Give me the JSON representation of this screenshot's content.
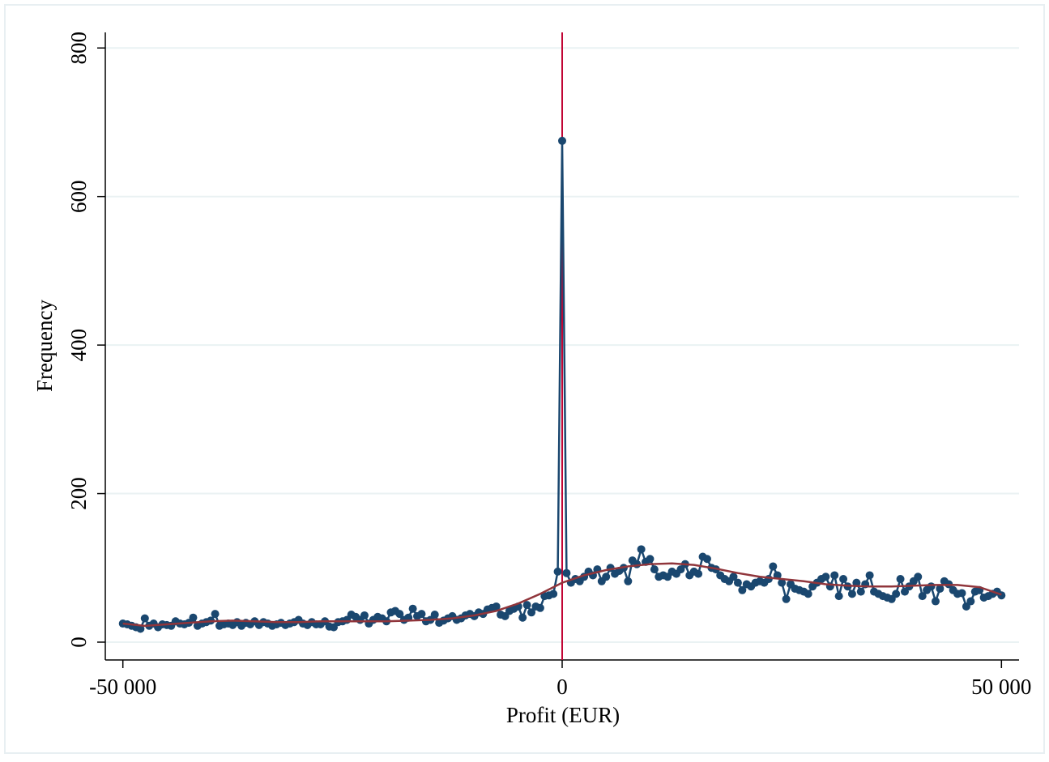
{
  "chart_data": {
    "type": "line",
    "x_label": "Profit (EUR)",
    "y_label": "Frequency",
    "xlim": [
      -52000,
      52000
    ],
    "ylim": [
      -24,
      821
    ],
    "xticks": [
      {
        "value": -50000,
        "label": "-50 000"
      },
      0,
      {
        "value": 50000,
        "label": "50 000"
      }
    ],
    "yticks": [
      0,
      200,
      400,
      600,
      800
    ],
    "grid": true,
    "reference_line": {
      "x": 0,
      "color": "#c10534"
    },
    "series": [
      {
        "color": "#1a476f",
        "markers": true,
        "x": [
          -50000,
          -49500,
          -49000,
          -48500,
          -48000,
          -47500,
          -47000,
          -46500,
          -46000,
          -45500,
          -45000,
          -44500,
          -44000,
          -43500,
          -43000,
          -42500,
          -42000,
          -41500,
          -41000,
          -40500,
          -40000,
          -39500,
          -39000,
          -38500,
          -38000,
          -37500,
          -37000,
          -36500,
          -36000,
          -35500,
          -35000,
          -34500,
          -34000,
          -33500,
          -33000,
          -32500,
          -32000,
          -31500,
          -31000,
          -30500,
          -30000,
          -29500,
          -29000,
          -28500,
          -28000,
          -27500,
          -27000,
          -26500,
          -26000,
          -25500,
          -25000,
          -24500,
          -24000,
          -23500,
          -23000,
          -22500,
          -22000,
          -21500,
          -21000,
          -20500,
          -20000,
          -19500,
          -19000,
          -18500,
          -18000,
          -17500,
          -17000,
          -16500,
          -16000,
          -15500,
          -15000,
          -14500,
          -14000,
          -13500,
          -13000,
          -12500,
          -12000,
          -11500,
          -11000,
          -10500,
          -10000,
          -9500,
          -9000,
          -8500,
          -8000,
          -7500,
          -7000,
          -6500,
          -6000,
          -5500,
          -5000,
          -4500,
          -4000,
          -3500,
          -3000,
          -2500,
          -2000,
          -1500,
          -1000,
          -500,
          0,
          500,
          1000,
          1500,
          2000,
          2500,
          3000,
          3500,
          4000,
          4500,
          5000,
          5500,
          6000,
          6500,
          7000,
          7500,
          8000,
          8500,
          9000,
          9500,
          10000,
          10500,
          11000,
          11500,
          12000,
          12500,
          13000,
          13500,
          14000,
          14500,
          15000,
          15500,
          16000,
          16500,
          17000,
          17500,
          18000,
          18500,
          19000,
          19500,
          20000,
          20500,
          21000,
          21500,
          22000,
          22500,
          23000,
          23500,
          24000,
          24500,
          25000,
          25500,
          26000,
          26500,
          27000,
          27500,
          28000,
          28500,
          29000,
          29500,
          30000,
          30500,
          31000,
          31500,
          32000,
          32500,
          33000,
          33500,
          34000,
          34500,
          35000,
          35500,
          36000,
          36500,
          37000,
          37500,
          38000,
          38500,
          39000,
          39500,
          40000,
          40500,
          41000,
          41500,
          42000,
          42500,
          43000,
          43500,
          44000,
          44500,
          45000,
          45500,
          46000,
          46500,
          47000,
          47500,
          48000,
          48500,
          49000,
          49500,
          50000
        ],
        "values": [
          25,
          24,
          22,
          20,
          18,
          32,
          22,
          25,
          20,
          24,
          23,
          22,
          28,
          25,
          24,
          26,
          33,
          22,
          25,
          27,
          29,
          38,
          22,
          24,
          25,
          23,
          27,
          22,
          26,
          24,
          28,
          23,
          27,
          25,
          22,
          24,
          26,
          23,
          25,
          27,
          30,
          25,
          23,
          27,
          24,
          24,
          28,
          21,
          20,
          27,
          28,
          30,
          37,
          34,
          30,
          36,
          25,
          30,
          34,
          32,
          28,
          40,
          42,
          38,
          30,
          33,
          45,
          35,
          38,
          28,
          30,
          37,
          26,
          29,
          32,
          35,
          30,
          32,
          36,
          38,
          35,
          40,
          38,
          44,
          46,
          48,
          37,
          35,
          42,
          45,
          48,
          33,
          50,
          40,
          48,
          46,
          62,
          63,
          65,
          95,
          675,
          93,
          80,
          85,
          82,
          88,
          95,
          90,
          98,
          82,
          88,
          100,
          92,
          96,
          100,
          82,
          110,
          105,
          125,
          108,
          112,
          98,
          88,
          90,
          88,
          95,
          92,
          98,
          105,
          90,
          95,
          92,
          115,
          112,
          100,
          98,
          90,
          85,
          82,
          88,
          80,
          70,
          78,
          75,
          80,
          82,
          80,
          85,
          102,
          90,
          80,
          58,
          78,
          72,
          70,
          68,
          65,
          75,
          80,
          85,
          88,
          75,
          90,
          62,
          85,
          75,
          65,
          80,
          68,
          78,
          90,
          68,
          65,
          62,
          60,
          58,
          65,
          85,
          68,
          75,
          82,
          88,
          62,
          70,
          75,
          55,
          72,
          82,
          78,
          70,
          65,
          66,
          48,
          55,
          68,
          70,
          60,
          62,
          65,
          68,
          63
        ]
      },
      {
        "color": "#90353b",
        "markers": false,
        "x": [
          -50000,
          -47500,
          -45000,
          -42500,
          -40000,
          -37500,
          -35000,
          -32500,
          -30000,
          -27500,
          -25000,
          -22500,
          -20000,
          -17500,
          -15000,
          -12500,
          -10000,
          -7500,
          -5000,
          -2500,
          0,
          2500,
          5000,
          7500,
          10000,
          12500,
          15000,
          17500,
          20000,
          22500,
          25000,
          27500,
          30000,
          32500,
          35000,
          37500,
          40000,
          42500,
          45000,
          47500,
          50000
        ],
        "values": [
          25,
          22,
          24,
          26,
          28,
          29,
          28,
          27,
          27,
          28,
          28,
          28,
          28,
          29,
          30,
          32,
          36,
          42,
          52,
          65,
          80,
          90,
          97,
          102,
          105,
          106,
          104,
          99,
          93,
          88,
          85,
          82,
          78,
          76,
          75,
          75,
          76,
          77,
          77,
          74,
          64
        ]
      }
    ]
  }
}
